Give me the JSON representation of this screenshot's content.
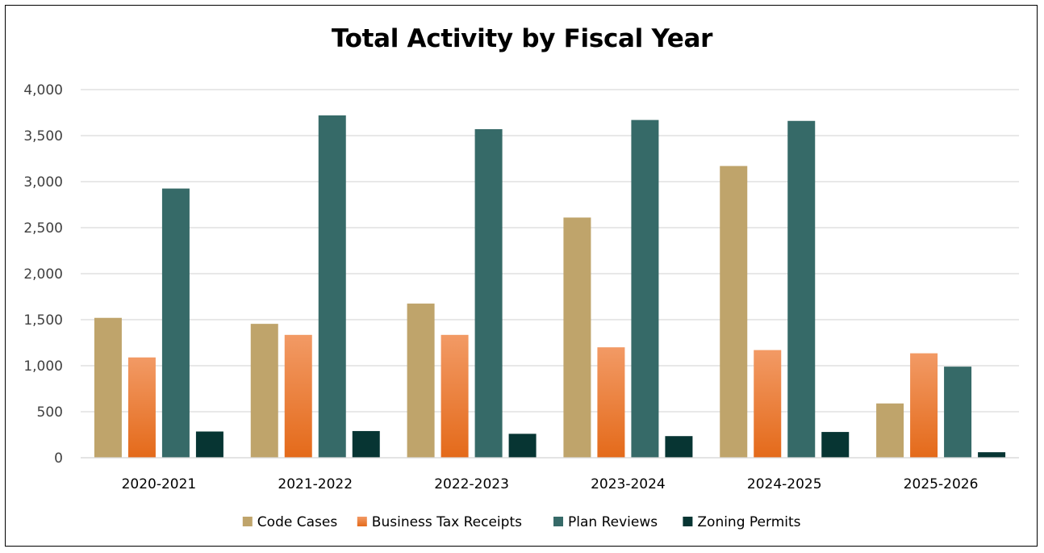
{
  "chart_data": {
    "type": "bar",
    "title": "Total Activity by Fiscal Year",
    "xlabel": "",
    "ylabel": "",
    "ylim": [
      0,
      4000
    ],
    "yticks": [
      0,
      500,
      1000,
      1500,
      2000,
      2500,
      3000,
      3500,
      4000
    ],
    "ytick_labels": [
      "0",
      "500",
      "1,000",
      "1,500",
      "2,000",
      "2,500",
      "3,000",
      "3,500",
      "4,000"
    ],
    "grid": true,
    "legend_position": "bottom",
    "categories": [
      "2020-2021",
      "2021-2022",
      "2022-2023",
      "2023-2024",
      "2024-2025",
      "2025-2026"
    ],
    "series": [
      {
        "name": "Code Cases",
        "color": "#BFA46B",
        "values": [
          1520,
          1455,
          1675,
          2610,
          3170,
          590
        ]
      },
      {
        "name": "Business Tax Receipts",
        "color": "#F07E2E",
        "gradient": [
          "#F29A65",
          "#E46A1A"
        ],
        "values": [
          1090,
          1335,
          1335,
          1200,
          1170,
          1135
        ]
      },
      {
        "name": "Plan Reviews",
        "color": "#366A68",
        "values": [
          2925,
          3720,
          3570,
          3670,
          3660,
          990
        ]
      },
      {
        "name": "Zoning Permits",
        "color": "#073533",
        "values": [
          285,
          290,
          260,
          235,
          280,
          60
        ]
      }
    ]
  }
}
